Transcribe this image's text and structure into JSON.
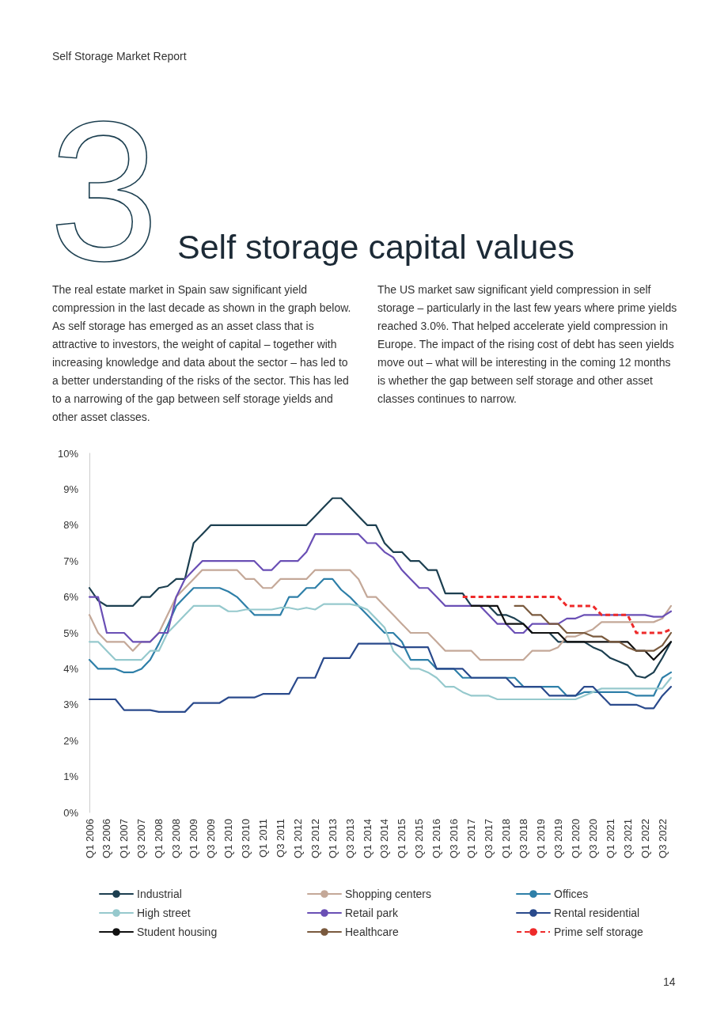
{
  "chart_data": {
    "type": "line",
    "title": "Self storage capital values",
    "annotations": [
      "Self Storage Market Report",
      "3",
      "The real estate market in Spain saw significant yield compression in the last decade as shown in the graph below.   As self storage has emerged as an asset class that is attractive to investors, the weight of capital – together with increasing knowledge and data about the sector – has led to a better understanding of the risks of the sector. This has led to a narrowing of the gap between self storage yields and other asset classes.",
      "The US market saw significant yield compression in self storage – particularly in the last few years where prime yields reached 3.0%. That helped accelerate yield compression in Europe. The impact of the rising cost of debt has seen yields move out – what will be interesting in the coming 12 months is whether the gap between self storage and other asset classes continues to narrow.",
      "14"
    ],
    "categories": [
      "Q1 2006",
      null,
      "Q3 2006",
      null,
      "Q1 2007",
      null,
      "Q3 2007",
      null,
      "Q1 2008",
      null,
      "Q3 2008",
      null,
      "Q1 2009",
      null,
      "Q3 2009",
      null,
      "Q1 2010",
      null,
      "Q3 2010",
      null,
      "Q1 2011",
      null,
      "Q3 2011",
      null,
      "Q1 2012",
      null,
      "Q3 2012",
      null,
      "Q1 2013",
      null,
      "Q3 2013",
      null,
      "Q1 2014",
      null,
      "Q3 2014",
      null,
      "Q1 2015",
      null,
      "Q3 2015",
      null,
      "Q1 2016",
      null,
      "Q3 2016",
      null,
      "Q1 2017",
      null,
      "Q3 2017",
      null,
      "Q1 2018",
      null,
      "Q3 2018",
      null,
      "Q1 2019",
      null,
      "Q3 2019",
      null,
      "Q1 2020",
      null,
      "Q3 2020",
      null,
      "Q1 2021",
      null,
      "Q3 2021",
      null,
      "Q1 2022",
      null,
      "Q3 2022",
      null
    ],
    "ylim": [
      0,
      10
    ],
    "yticks": [
      {
        "value": 0,
        "label": "0%"
      },
      {
        "value": 1,
        "label": "1%"
      },
      {
        "value": 2,
        "label": "2%"
      },
      {
        "value": 3,
        "label": "3%"
      },
      {
        "value": 4,
        "label": "4%"
      },
      {
        "value": 5,
        "label": "5%"
      },
      {
        "value": 6,
        "label": "6%"
      },
      {
        "value": 7,
        "label": "7%"
      },
      {
        "value": 8,
        "label": "8%"
      },
      {
        "value": 9,
        "label": "9%"
      },
      {
        "value": 10,
        "label": "10%"
      }
    ],
    "grid": false,
    "legend": "bottom",
    "marker": "none",
    "line_style": "solid",
    "series": [
      {
        "name": "Industrial",
        "color": "#1c3f50",
        "values": [
          6.25,
          5.9,
          5.75,
          5.75,
          5.75,
          5.75,
          6.0,
          6.0,
          6.25,
          6.3,
          6.5,
          6.5,
          7.5,
          7.75,
          8,
          8,
          8,
          8,
          8,
          8,
          8,
          8,
          8,
          8,
          8,
          8,
          8.25,
          8.5,
          8.75,
          8.75,
          8.5,
          8.25,
          8,
          8,
          7.5,
          7.25,
          7.25,
          7,
          7,
          6.75,
          6.75,
          6.1,
          6.1,
          6.1,
          5.75,
          5.75,
          5.75,
          5.5,
          5.5,
          5.4,
          5.25,
          5,
          5,
          5,
          4.75,
          4.75,
          4.75,
          4.75,
          4.6,
          4.5,
          4.3,
          4.2,
          4.1,
          3.8,
          3.75,
          3.9,
          4.3,
          4.75
        ]
      },
      {
        "name": "Shopping centers",
        "color": "#c4a898",
        "values": [
          5.5,
          5,
          4.75,
          4.75,
          4.75,
          4.5,
          4.75,
          4.75,
          5,
          5.5,
          6,
          6.25,
          6.5,
          6.75,
          6.75,
          6.75,
          6.75,
          6.75,
          6.5,
          6.5,
          6.25,
          6.25,
          6.5,
          6.5,
          6.5,
          6.5,
          6.75,
          6.75,
          6.75,
          6.75,
          6.75,
          6.5,
          6,
          6,
          5.75,
          5.5,
          5.25,
          5,
          5,
          5,
          4.75,
          4.5,
          4.5,
          4.5,
          4.5,
          4.25,
          4.25,
          4.25,
          4.25,
          4.25,
          4.25,
          4.5,
          4.5,
          4.5,
          4.6,
          4.9,
          4.9,
          5,
          5.1,
          5.3,
          5.3,
          5.3,
          5.3,
          5.3,
          5.3,
          5.3,
          5.4,
          5.75
        ]
      },
      {
        "name": "Offices",
        "color": "#2e7fa8",
        "values": [
          4.25,
          4,
          4,
          4,
          3.9,
          3.9,
          4,
          4.25,
          4.7,
          5.2,
          5.75,
          6,
          6.25,
          6.25,
          6.25,
          6.25,
          6.15,
          6,
          5.75,
          5.5,
          5.5,
          5.5,
          5.5,
          6,
          6,
          6.25,
          6.25,
          6.5,
          6.5,
          6.2,
          6,
          5.75,
          5.5,
          5.25,
          5,
          5,
          4.75,
          4.25,
          4.25,
          4.25,
          4,
          4,
          4,
          3.75,
          3.75,
          3.75,
          3.75,
          3.75,
          3.75,
          3.75,
          3.5,
          3.5,
          3.5,
          3.5,
          3.5,
          3.25,
          3.25,
          3.35,
          3.35,
          3.35,
          3.35,
          3.35,
          3.35,
          3.25,
          3.25,
          3.25,
          3.75,
          3.9
        ]
      },
      {
        "name": "High street",
        "color": "#96c9cd",
        "values": [
          4.75,
          4.75,
          4.5,
          4.25,
          4.25,
          4.25,
          4.25,
          4.5,
          4.5,
          5,
          5.25,
          5.5,
          5.75,
          5.75,
          5.75,
          5.75,
          5.6,
          5.6,
          5.65,
          5.65,
          5.65,
          5.65,
          5.7,
          5.7,
          5.65,
          5.7,
          5.65,
          5.8,
          5.8,
          5.8,
          5.8,
          5.75,
          5.65,
          5.4,
          5.15,
          4.5,
          4.25,
          4,
          4,
          3.9,
          3.75,
          3.5,
          3.5,
          3.35,
          3.25,
          3.25,
          3.25,
          3.15,
          3.15,
          3.15,
          3.15,
          3.15,
          3.15,
          3.15,
          3.15,
          3.15,
          3.15,
          3.25,
          3.35,
          3.45,
          3.45,
          3.45,
          3.45,
          3.45,
          3.45,
          3.45,
          3.45,
          3.75
        ]
      },
      {
        "name": "Retail park",
        "color": "#6a4fb5",
        "values": [
          6,
          6,
          5,
          5,
          5,
          4.75,
          4.75,
          4.75,
          5,
          5,
          6,
          6.5,
          6.75,
          7,
          7,
          7,
          7,
          7,
          7,
          7,
          6.75,
          6.75,
          7,
          7,
          7,
          7.25,
          7.75,
          7.75,
          7.75,
          7.75,
          7.75,
          7.75,
          7.5,
          7.5,
          7.25,
          7.1,
          6.75,
          6.5,
          6.25,
          6.25,
          6,
          5.75,
          5.75,
          5.75,
          5.75,
          5.75,
          5.5,
          5.25,
          5.25,
          5,
          5,
          5.25,
          5.25,
          5.25,
          5.25,
          5.4,
          5.4,
          5.5,
          5.5,
          5.5,
          5.5,
          5.5,
          5.5,
          5.5,
          5.5,
          5.45,
          5.45,
          5.6
        ]
      },
      {
        "name": "Rental residential",
        "color": "#2a4a8c",
        "values": [
          3.15,
          3.15,
          3.15,
          3.15,
          2.85,
          2.85,
          2.85,
          2.85,
          2.8,
          2.8,
          2.8,
          2.8,
          3.05,
          3.05,
          3.05,
          3.05,
          3.2,
          3.2,
          3.2,
          3.2,
          3.3,
          3.3,
          3.3,
          3.3,
          3.75,
          3.75,
          3.75,
          4.3,
          4.3,
          4.3,
          4.3,
          4.7,
          4.7,
          4.7,
          4.7,
          4.7,
          4.6,
          4.6,
          4.6,
          4.6,
          4,
          4,
          4,
          4,
          3.75,
          3.75,
          3.75,
          3.75,
          3.75,
          3.5,
          3.5,
          3.5,
          3.5,
          3.25,
          3.25,
          3.25,
          3.25,
          3.5,
          3.5,
          3.25,
          3,
          3,
          3,
          3,
          2.9,
          2.9,
          3.25,
          3.5
        ]
      },
      {
        "name": "Student housing",
        "color": "#111111",
        "values": [
          null,
          null,
          null,
          null,
          null,
          null,
          null,
          null,
          null,
          null,
          null,
          null,
          null,
          null,
          null,
          null,
          null,
          null,
          null,
          null,
          null,
          null,
          null,
          null,
          null,
          null,
          null,
          null,
          null,
          null,
          null,
          null,
          null,
          null,
          null,
          null,
          null,
          null,
          null,
          null,
          null,
          null,
          null,
          null,
          5.75,
          5.75,
          5.75,
          5.75,
          5.25,
          5.25,
          5.25,
          5,
          5,
          5,
          5,
          4.75,
          4.75,
          4.75,
          4.75,
          4.75,
          4.75,
          4.75,
          4.75,
          4.5,
          4.5,
          4.25,
          4.5,
          4.75
        ]
      },
      {
        "name": "Healthcare",
        "color": "#7a5a3e",
        "values": [
          null,
          null,
          null,
          null,
          null,
          null,
          null,
          null,
          null,
          null,
          null,
          null,
          null,
          null,
          null,
          null,
          null,
          null,
          null,
          null,
          null,
          null,
          null,
          null,
          null,
          null,
          null,
          null,
          null,
          null,
          null,
          null,
          null,
          null,
          null,
          null,
          null,
          null,
          null,
          null,
          null,
          null,
          null,
          null,
          null,
          null,
          null,
          null,
          null,
          5.75,
          5.75,
          5.5,
          5.5,
          5.25,
          5.25,
          5,
          5,
          5,
          4.9,
          4.9,
          4.75,
          4.75,
          4.6,
          4.5,
          4.5,
          4.5,
          4.65,
          5
        ]
      },
      {
        "name": "Prime self storage",
        "color": "#ee2a2a",
        "line_style": "dashed",
        "values": [
          null,
          null,
          null,
          null,
          null,
          null,
          null,
          null,
          null,
          null,
          null,
          null,
          null,
          null,
          null,
          null,
          null,
          null,
          null,
          null,
          null,
          null,
          null,
          null,
          null,
          null,
          null,
          null,
          null,
          null,
          null,
          null,
          null,
          null,
          null,
          null,
          null,
          null,
          null,
          null,
          null,
          null,
          null,
          6,
          6,
          6,
          6,
          6,
          6,
          6,
          6,
          6,
          6,
          6,
          6,
          5.75,
          5.75,
          5.75,
          5.75,
          5.5,
          5.5,
          5.5,
          5.5,
          5,
          5,
          5,
          5,
          5.1
        ]
      }
    ]
  }
}
